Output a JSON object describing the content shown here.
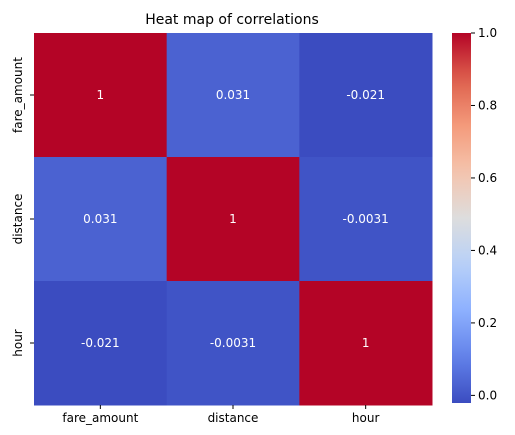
{
  "chart_data": {
    "type": "heatmap",
    "title": "Heat map of correlations",
    "x_categories": [
      "fare_amount",
      "distance",
      "hour"
    ],
    "y_categories": [
      "fare_amount",
      "distance",
      "hour"
    ],
    "values": [
      [
        1,
        0.031,
        -0.021
      ],
      [
        0.031,
        1,
        -0.0031
      ],
      [
        -0.021,
        -0.0031,
        1
      ]
    ],
    "cell_labels": [
      [
        "1",
        "0.031",
        "-0.021"
      ],
      [
        "0.031",
        "1",
        "-0.0031"
      ],
      [
        "-0.021",
        "-0.0031",
        "1"
      ]
    ],
    "colormap": "coolwarm",
    "color_range": [
      -0.021,
      1
    ],
    "colorbar": {
      "ticks": [
        0.0,
        0.2,
        0.4,
        0.6,
        0.8,
        1.0
      ],
      "tick_labels": [
        "0.0",
        "0.2",
        "0.4",
        "0.6",
        "0.8",
        "1.0"
      ]
    },
    "annotation_color": "#ffffff"
  }
}
